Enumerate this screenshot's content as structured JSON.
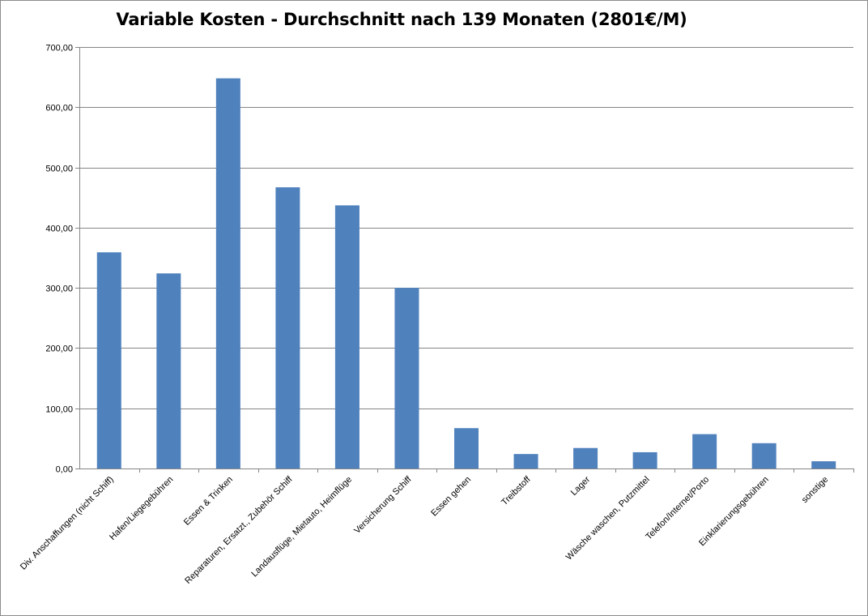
{
  "chart_data": {
    "type": "bar",
    "title": "Variable Kosten - Durchschnitt nach 139 Monaten (2801€/M)",
    "xlabel": "",
    "ylabel": "",
    "ylim": [
      0,
      700
    ],
    "yticks": [
      "0,00",
      "100,00",
      "200,00",
      "300,00",
      "400,00",
      "500,00",
      "600,00",
      "700,00"
    ],
    "ytick_values": [
      0,
      100,
      200,
      300,
      400,
      500,
      600,
      700
    ],
    "grid": true,
    "legend": "none",
    "bar_color": "#4f81bd",
    "gridline_color": "#868686",
    "categories": [
      "Div. Anschaffungen (nicht Schiff)",
      "Hafen/Liegegebühren",
      "Essen & Trinken",
      "Reparaturen, Ersatzt., Zubehör Schiff",
      "Landausflüge, Mietauto, Heimflüge",
      "Versicherung Schiff",
      "Essen gehen",
      "Treibstoff",
      "Lager",
      "Wäsche waschen, Putzmittel",
      "Telefon/Internet/Porto",
      "Einklarierungsgebühren",
      "sonstige"
    ],
    "values": [
      359,
      324,
      648,
      467,
      437,
      300,
      67,
      24,
      34,
      27,
      57,
      42,
      12
    ]
  }
}
